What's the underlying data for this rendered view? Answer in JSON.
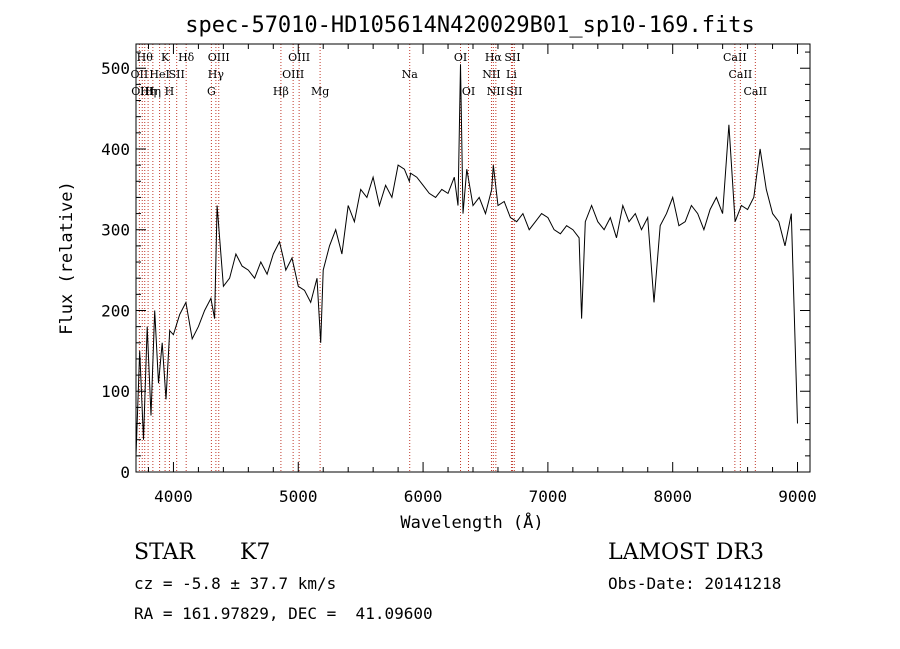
{
  "chart_data": {
    "type": "line",
    "title": "spec-57010-HD105614N420029B01_sp10-169.fits",
    "xlabel": "Wavelength (Å)",
    "ylabel": "Flux (relative)",
    "xlim": [
      3700,
      9100
    ],
    "ylim": [
      0,
      530
    ],
    "x_ticks": [
      4000,
      5000,
      6000,
      7000,
      8000,
      9000
    ],
    "y_ticks": [
      0,
      100,
      200,
      300,
      400,
      500
    ],
    "grid": false,
    "series": [
      {
        "color": "#000000",
        "x": [
          3700,
          3730,
          3760,
          3790,
          3820,
          3850,
          3880,
          3910,
          3940,
          3970,
          4000,
          4050,
          4100,
          4150,
          4200,
          4250,
          4300,
          4330,
          4350,
          4400,
          4450,
          4500,
          4550,
          4600,
          4650,
          4700,
          4750,
          4800,
          4850,
          4880,
          4900,
          4950,
          5000,
          5050,
          5100,
          5150,
          5180,
          5200,
          5250,
          5300,
          5350,
          5400,
          5450,
          5500,
          5550,
          5600,
          5650,
          5700,
          5750,
          5800,
          5850,
          5890,
          5900,
          5950,
          6000,
          6050,
          6100,
          6150,
          6200,
          6250,
          6280,
          6300,
          6320,
          6350,
          6400,
          6450,
          6500,
          6550,
          6563,
          6600,
          6650,
          6700,
          6750,
          6800,
          6850,
          6900,
          6950,
          7000,
          7050,
          7100,
          7150,
          7200,
          7250,
          7270,
          7300,
          7350,
          7400,
          7450,
          7500,
          7550,
          7600,
          7650,
          7700,
          7750,
          7800,
          7850,
          7900,
          7950,
          8000,
          8050,
          8100,
          8150,
          8200,
          8250,
          8300,
          8350,
          8400,
          8450,
          8500,
          8550,
          8600,
          8650,
          8700,
          8750,
          8800,
          8850,
          8900,
          8950,
          9000
        ],
        "values": [
          20,
          150,
          40,
          180,
          70,
          200,
          110,
          160,
          90,
          175,
          170,
          195,
          210,
          165,
          180,
          200,
          215,
          190,
          330,
          230,
          240,
          270,
          255,
          250,
          240,
          260,
          245,
          270,
          285,
          265,
          250,
          265,
          230,
          225,
          210,
          240,
          160,
          250,
          280,
          300,
          270,
          330,
          310,
          350,
          340,
          365,
          330,
          355,
          340,
          380,
          375,
          360,
          370,
          365,
          355,
          345,
          340,
          350,
          345,
          365,
          330,
          505,
          320,
          375,
          330,
          340,
          320,
          350,
          380,
          330,
          335,
          315,
          310,
          320,
          300,
          310,
          320,
          315,
          300,
          295,
          305,
          300,
          290,
          190,
          310,
          330,
          310,
          300,
          315,
          290,
          330,
          310,
          320,
          300,
          315,
          210,
          305,
          320,
          340,
          305,
          310,
          330,
          320,
          300,
          325,
          340,
          320,
          430,
          310,
          330,
          325,
          340,
          400,
          350,
          320,
          310,
          280,
          320,
          60
        ]
      }
    ]
  },
  "lines": [
    {
      "wl": 3727,
      "label": "OII",
      "row": 1
    },
    {
      "wl": 3750,
      "label": "OIII",
      "row": 2
    },
    {
      "wl": 3770,
      "label": "Hθ",
      "row": 0
    },
    {
      "wl": 3797,
      "label": "Hη",
      "row": 2
    },
    {
      "wl": 3835,
      "label": "Hη",
      "row": 2
    },
    {
      "wl": 3889,
      "label": "HeI",
      "row": 1
    },
    {
      "wl": 3933,
      "label": "K",
      "row": 0
    },
    {
      "wl": 3968,
      "label": "H",
      "row": 2
    },
    {
      "wl": 4026,
      "label": "SII",
      "row": 1
    },
    {
      "wl": 4102,
      "label": "Hδ",
      "row": 0
    },
    {
      "wl": 4304,
      "label": "G",
      "row": 2
    },
    {
      "wl": 4340,
      "label": "Hγ",
      "row": 1
    },
    {
      "wl": 4363,
      "label": "OIII",
      "row": 0
    },
    {
      "wl": 4861,
      "label": "Hβ",
      "row": 2
    },
    {
      "wl": 4959,
      "label": "OIII",
      "row": 1
    },
    {
      "wl": 5007,
      "label": "OIII",
      "row": 0
    },
    {
      "wl": 5175,
      "label": "Mg",
      "row": 2
    },
    {
      "wl": 5893,
      "label": "Na",
      "row": 1
    },
    {
      "wl": 6300,
      "label": "OI",
      "row": 0
    },
    {
      "wl": 6364,
      "label": "OI",
      "row": 2
    },
    {
      "wl": 6548,
      "label": "NII",
      "row": 1
    },
    {
      "wl": 6563,
      "label": "Hα",
      "row": 0
    },
    {
      "wl": 6583,
      "label": "NII",
      "row": 2
    },
    {
      "wl": 6708,
      "label": "Li",
      "row": 1
    },
    {
      "wl": 6716,
      "label": "SII",
      "row": 0
    },
    {
      "wl": 6731,
      "label": "SII",
      "row": 2
    },
    {
      "wl": 8498,
      "label": "CaII",
      "row": 0
    },
    {
      "wl": 8542,
      "label": "CaII",
      "row": 1
    },
    {
      "wl": 8662,
      "label": "CaII",
      "row": 2
    }
  ],
  "info": {
    "object_class": "STAR",
    "subclass": "K7",
    "survey": "LAMOST DR3",
    "cz": "cz = -5.8 ± 37.7 km/s",
    "obs_date": "Obs-Date: 20141218",
    "radec": "RA = 161.97829, DEC =  41.09600"
  }
}
